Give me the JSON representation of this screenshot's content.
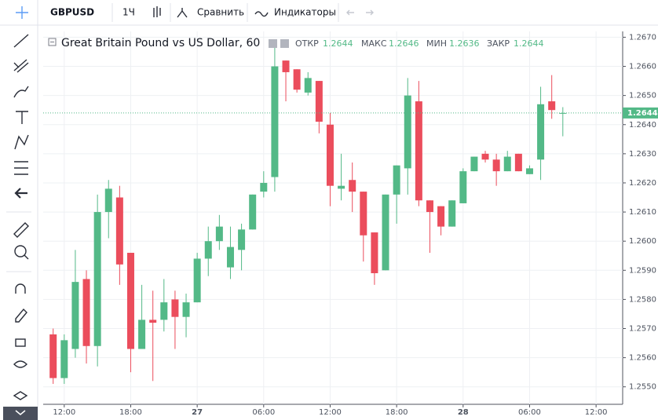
{
  "toolbar": {
    "symbol": "GBPUSD",
    "interval": "1Ч",
    "compare": "Сравнить",
    "indicators": "Индикаторы"
  },
  "chart_data": {
    "type": "candlestick",
    "title": "Great Britain Pound vs US Dollar, 60",
    "legend": {
      "open_label": "ОТКР",
      "open": "1.2644",
      "high_label": "МАКС",
      "high": "1.2646",
      "low_label": "МИН",
      "low": "1.2636",
      "close_label": "ЗАКР",
      "close": "1.2644"
    },
    "x": [
      -1,
      0,
      1,
      2,
      3,
      4,
      5,
      6,
      7,
      8,
      9,
      10,
      11,
      12,
      13,
      14,
      15,
      16,
      17,
      18,
      19,
      20,
      21,
      22,
      23,
      24,
      25,
      26,
      27,
      28,
      29,
      30,
      31,
      32,
      33,
      34,
      35,
      36,
      37,
      38,
      39,
      40,
      41,
      42,
      43,
      44,
      45
    ],
    "open": [
      1.2568,
      1.2553,
      1.2563,
      1.2587,
      1.2564,
      1.261,
      1.2615,
      1.2596,
      1.2563,
      1.2573,
      1.2573,
      1.258,
      1.2574,
      1.2579,
      1.2594,
      1.26,
      1.2591,
      1.2597,
      1.2604,
      1.2617,
      1.2622,
      1.2662,
      1.2659,
      1.2651,
      1.2655,
      1.264,
      1.2618,
      1.2621,
      1.2617,
      1.2603,
      1.259,
      1.2616,
      1.2625,
      1.2648,
      1.2614,
      1.2612,
      1.2605,
      1.2613,
      1.2624,
      1.263,
      1.2628,
      1.2624,
      1.263,
      1.2623,
      1.2628,
      1.2648,
      1.2644
    ],
    "high": [
      1.257,
      1.2568,
      1.2597,
      1.259,
      1.2616,
      1.2621,
      1.2619,
      1.2596,
      1.2585,
      1.2583,
      1.2587,
      1.2583,
      1.2582,
      1.2596,
      1.2605,
      1.2609,
      1.2605,
      1.2606,
      1.2616,
      1.2624,
      1.2667,
      1.2662,
      1.2659,
      1.2658,
      1.2655,
      1.2644,
      1.263,
      1.2627,
      1.2617,
      1.2603,
      1.2616,
      1.2626,
      1.2656,
      1.2655,
      1.2614,
      1.2612,
      1.2614,
      1.2625,
      1.2629,
      1.2631,
      1.263,
      1.2631,
      1.263,
      1.2626,
      1.2653,
      1.2657,
      1.2646
    ],
    "low": [
      1.2551,
      1.2551,
      1.256,
      1.2558,
      1.2557,
      1.2601,
      1.2585,
      1.2555,
      1.2563,
      1.2552,
      1.2569,
      1.2563,
      1.2567,
      1.2579,
      1.2588,
      1.2597,
      1.2587,
      1.259,
      1.2604,
      1.2615,
      1.2617,
      1.2648,
      1.2651,
      1.265,
      1.2637,
      1.2612,
      1.2614,
      1.261,
      1.2593,
      1.2585,
      1.259,
      1.2606,
      1.2616,
      1.2612,
      1.2596,
      1.2602,
      1.2605,
      1.2613,
      1.2624,
      1.2627,
      1.2619,
      1.2624,
      1.2624,
      1.2623,
      1.2621,
      1.2642,
      1.2636
    ],
    "close": [
      1.2553,
      1.2566,
      1.2586,
      1.2564,
      1.261,
      1.2618,
      1.2592,
      1.2563,
      1.2573,
      1.2572,
      1.2579,
      1.2574,
      1.2579,
      1.2594,
      1.26,
      1.2605,
      1.2598,
      1.2604,
      1.2616,
      1.262,
      1.266,
      1.2658,
      1.2652,
      1.2656,
      1.2641,
      1.2619,
      1.2619,
      1.2617,
      1.2602,
      1.2589,
      1.2616,
      1.2626,
      1.265,
      1.2614,
      1.261,
      1.2605,
      1.2614,
      1.2624,
      1.2629,
      1.2628,
      1.2624,
      1.2629,
      1.2624,
      1.2625,
      1.2647,
      1.2645,
      1.2644
    ],
    "up_color": "#53b987",
    "down_color": "#eb4d5c",
    "last_price": {
      "value": 1.2644,
      "label": "1.2644"
    },
    "xlim": [
      -1.9,
      50.4
    ],
    "xticks": [
      {
        "value": 0,
        "label": "12:00"
      },
      {
        "value": 6,
        "label": "18:00"
      },
      {
        "value": 12,
        "label": "27"
      },
      {
        "value": 18,
        "label": "06:00"
      },
      {
        "value": 24,
        "label": "12:00"
      },
      {
        "value": 30,
        "label": "18:00"
      },
      {
        "value": 36,
        "label": "28"
      },
      {
        "value": 42,
        "label": "06:00"
      },
      {
        "value": 48,
        "label": "12:00"
      }
    ],
    "ylim": [
      1.2544,
      1.2672
    ],
    "yticks": [
      {
        "value": 1.255,
        "label": "1.2550"
      },
      {
        "value": 1.256,
        "label": "1.2560"
      },
      {
        "value": 1.257,
        "label": "1.2570"
      },
      {
        "value": 1.258,
        "label": "1.2580"
      },
      {
        "value": 1.259,
        "label": "1.2590"
      },
      {
        "value": 1.26,
        "label": "1.2600"
      },
      {
        "value": 1.261,
        "label": "1.2610"
      },
      {
        "value": 1.262,
        "label": "1.2620"
      },
      {
        "value": 1.263,
        "label": "1.2630"
      },
      {
        "value": 1.264,
        "label": "1.2640"
      },
      {
        "value": 1.265,
        "label": "1.2650"
      },
      {
        "value": 1.266,
        "label": "1.2660"
      },
      {
        "value": 1.267,
        "label": "1.2670"
      }
    ],
    "grid": true
  }
}
